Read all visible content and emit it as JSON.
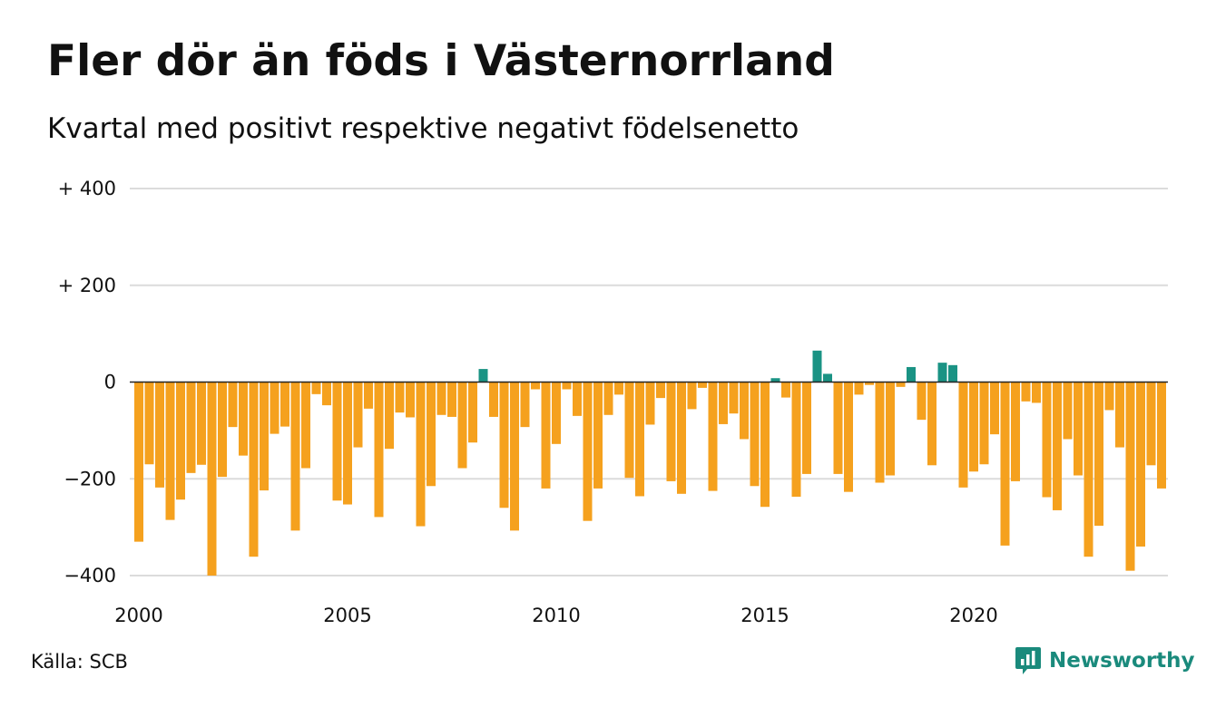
{
  "title": "Fler dör än föds i Västernorrland",
  "subtitle": "Kvartal med positivt respektive negativt födelsenetto",
  "source": "Källa: SCB",
  "brand": {
    "name": "Newsworthy",
    "icon": "newsworthy-logo-icon"
  },
  "colors": {
    "positive": "#1a9384",
    "negative": "#f5a11e",
    "grid": "#dcdcdc",
    "zero_line": "#222222"
  },
  "chart_data": {
    "type": "bar",
    "x_start": "2000 Q1",
    "x_interval": "quarter",
    "ylim": [
      -400,
      400
    ],
    "y_ticks": [
      {
        "value": 400,
        "label": "+ 400"
      },
      {
        "value": 200,
        "label": "+ 200"
      },
      {
        "value": 0,
        "label": "0"
      },
      {
        "value": -200,
        "label": "−200"
      },
      {
        "value": -400,
        "label": "−400"
      }
    ],
    "x_ticks": [
      "2000",
      "2005",
      "2010",
      "2015",
      "2020"
    ],
    "values": [
      -330,
      -170,
      -218,
      -285,
      -243,
      -188,
      -171,
      -400,
      -196,
      -93,
      -152,
      -361,
      -224,
      -107,
      -92,
      -307,
      -178,
      -25,
      -48,
      -245,
      -253,
      -135,
      -55,
      -279,
      -138,
      -63,
      -73,
      -298,
      -215,
      -68,
      -72,
      -178,
      -125,
      27,
      -72,
      -260,
      -307,
      -93,
      -15,
      -220,
      -128,
      -15,
      -70,
      -287,
      -220,
      -68,
      -26,
      -198,
      -236,
      -88,
      -33,
      -205,
      -231,
      -56,
      -12,
      -225,
      -87,
      -65,
      -118,
      -215,
      -258,
      8,
      -32,
      -237,
      -190,
      65,
      17,
      -190,
      -227,
      -26,
      -6,
      -208,
      -193,
      -10,
      31,
      -78,
      -172,
      40,
      35,
      -218,
      -185,
      -170,
      -108,
      -338,
      -205,
      -40,
      -43,
      -238,
      -265,
      -118,
      -193,
      -361,
      -297,
      -58,
      -135,
      -390,
      -340,
      -172,
      -220
    ],
    "grid": true
  }
}
